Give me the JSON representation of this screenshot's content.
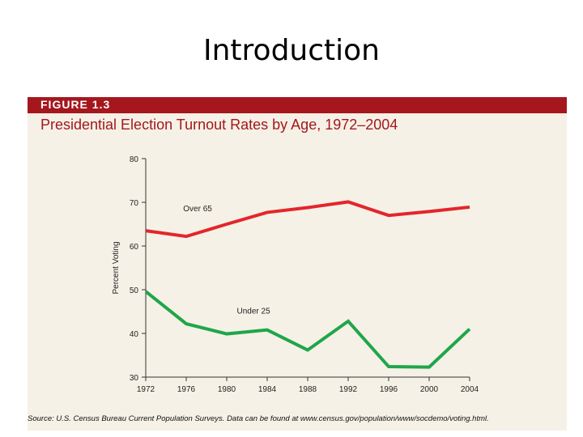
{
  "slide": {
    "title": "Introduction"
  },
  "figure": {
    "label": "FIGURE 1.3",
    "title": "Presidential Election Turnout Rates by Age, 1972–2004",
    "source": "Source: U.S. Census Bureau Current Population Surveys. Data can be found at www.census.gov/population/www/socdemo/voting.html."
  },
  "colors": {
    "header_bar": "#a5171d",
    "title_text": "#a5171d",
    "panel_background": "#f5f1e6",
    "over65_line": "#e3262b",
    "under25_line": "#1fa64a",
    "axis": "#333333"
  },
  "chart_data": {
    "type": "line",
    "title": "Presidential Election Turnout Rates by Age, 1972–2004",
    "xlabel": "",
    "ylabel": "Percent Voting",
    "x": [
      1972,
      1976,
      1980,
      1984,
      1988,
      1992,
      1996,
      2000,
      2004
    ],
    "x_tick_labels": [
      "1972",
      "1976",
      "1980",
      "1984",
      "1988",
      "1992",
      "1996",
      "2000",
      "2004"
    ],
    "ylim": [
      30,
      80
    ],
    "y_ticks": [
      30,
      40,
      50,
      60,
      70,
      80
    ],
    "grid": false,
    "legend": "inline labels",
    "series": [
      {
        "name": "Over 65",
        "values": [
          63.5,
          62.2,
          65.0,
          67.7,
          68.8,
          70.1,
          67.0,
          67.9,
          68.9
        ]
      },
      {
        "name": "Under 25",
        "values": [
          49.6,
          42.2,
          39.9,
          40.8,
          36.2,
          42.8,
          32.4,
          32.3,
          41.0
        ]
      }
    ]
  }
}
